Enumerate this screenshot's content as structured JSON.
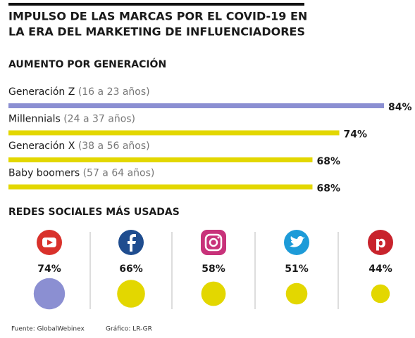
{
  "title": [
    "IMPULSO DE LAS MARCAS POR EL COVID-19 EN",
    "LA ERA DEL MARKETING DE INFLUENCIADORES"
  ],
  "footer": {
    "source": "Fuente: GlobalWebinex",
    "credit": "Gráfico: LR-GR"
  },
  "chart_data": [
    {
      "type": "bar",
      "title": "AUMENTO POR GENERACIÓN",
      "categories": [
        "Generación Z (16 a 23 años)",
        "Millennials (24 a 37 años)",
        "Generación X (38 a 56 años)",
        "Baby boomers (57 a 64 años)"
      ],
      "values": [
        84,
        74,
        68,
        68
      ],
      "value_labels": [
        "84%",
        "74%",
        "68%",
        "68%"
      ],
      "colors": [
        "#8b8fd2",
        "#e3d700",
        "#e3d700",
        "#e3d700"
      ]
    },
    {
      "type": "bubble",
      "title": "REDES SOCIALES MÁS USADAS",
      "values": [
        74,
        66,
        58,
        51,
        44
      ],
      "value_labels": [
        "74%",
        "66%",
        "58%",
        "51%",
        "44%"
      ],
      "colors": [
        "#8b8fd2",
        "#e3d700",
        "#e3d700",
        "#e3d700",
        "#e3d700"
      ]
    }
  ]
}
